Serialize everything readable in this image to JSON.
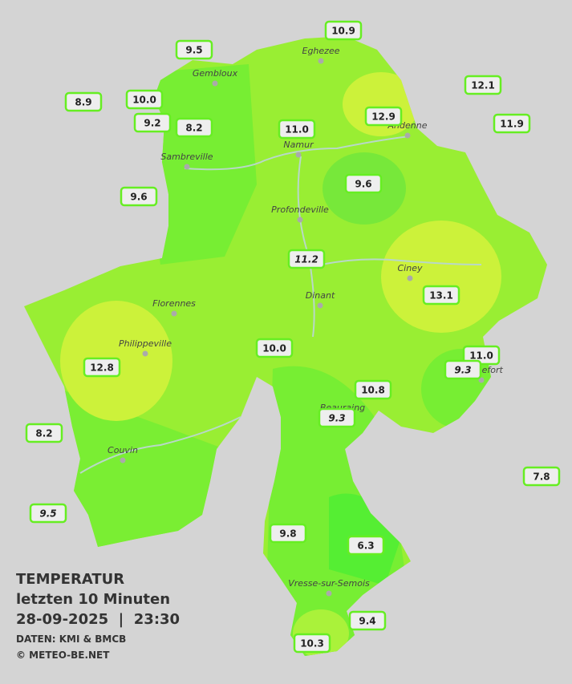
{
  "title": "TEMPERATUR",
  "subtitle": "letzten 10 Minuten",
  "datetime": "28-09-2025  |  23:30",
  "source": "DATEN: KMI & BMCB",
  "copyright": "© METEO-BE.NET",
  "towns": [
    "Eghezee",
    "Gembloux",
    "Andenne",
    "Namur",
    "Sambreville",
    "Profondeville",
    "Ciney",
    "Dinant",
    "Florennes",
    "Philippeville",
    "Rochefort",
    "Beauraing",
    "Couvin",
    "Vresse-sur-Semois"
  ],
  "stations": [
    {
      "label": "10.9"
    },
    {
      "label": "9.5"
    },
    {
      "label": "12.1"
    },
    {
      "label": "8.9"
    },
    {
      "label": "10.0"
    },
    {
      "label": "9.2"
    },
    {
      "label": "8.2"
    },
    {
      "label": "11.0"
    },
    {
      "label": "12.9"
    },
    {
      "label": "11.9"
    },
    {
      "label": "9.6"
    },
    {
      "label": "9.6"
    },
    {
      "label": "11.2",
      "italic": true
    },
    {
      "label": "13.1"
    },
    {
      "label": "10.0"
    },
    {
      "label": "11.0"
    },
    {
      "label": "9.3",
      "italic": true
    },
    {
      "label": "12.8"
    },
    {
      "label": "10.8"
    },
    {
      "label": "9.3",
      "italic": true
    },
    {
      "label": "8.2"
    },
    {
      "label": "7.8"
    },
    {
      "label": "9.5",
      "italic": true
    },
    {
      "label": "9.8"
    },
    {
      "label": "6.3"
    },
    {
      "label": "9.4"
    },
    {
      "label": "10.3"
    }
  ]
}
